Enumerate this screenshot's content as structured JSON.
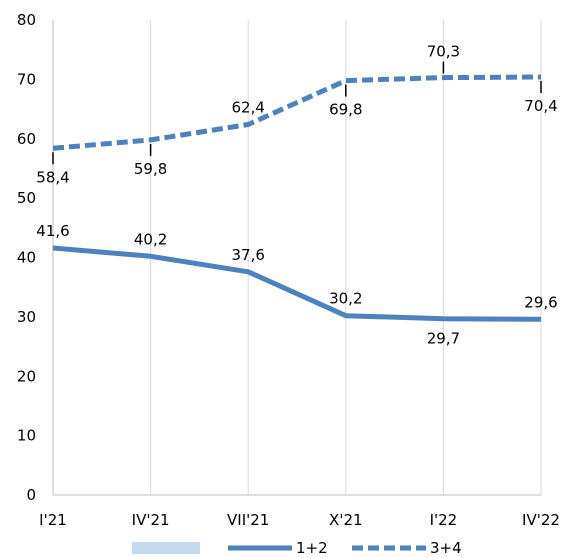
{
  "chart_data": {
    "type": "line",
    "categories": [
      "I'21",
      "IV'21",
      "VII'21",
      "X'21",
      "I'22",
      "IV'22"
    ],
    "ylim": [
      0,
      80
    ],
    "yticks": [
      0,
      10,
      20,
      30,
      40,
      50,
      60,
      70,
      80
    ],
    "grid": {
      "vertical": true,
      "horizontal": false
    },
    "legend_position": "bottom",
    "legend_patch_color": "#c5d9ef",
    "series": [
      {
        "name": "1+2",
        "style": "solid",
        "color": "#4f81bd",
        "values": [
          41.6,
          40.2,
          37.6,
          30.2,
          29.7,
          29.6
        ],
        "labels": [
          "41,6",
          "40,2",
          "37,6",
          "30,2",
          "29,7",
          "29,6"
        ],
        "label_placement": [
          "above",
          "above",
          "above",
          "above",
          "below",
          "above"
        ],
        "leader_lines": [
          false,
          false,
          false,
          false,
          false,
          false
        ]
      },
      {
        "name": "3+4",
        "style": "dashed",
        "color": "#4f81bd",
        "values": [
          58.4,
          59.8,
          62.4,
          69.8,
          70.3,
          70.4
        ],
        "labels": [
          "58,4",
          "59,8",
          "62,4",
          "69,8",
          "70,3",
          "70,4"
        ],
        "label_placement": [
          "below",
          "below",
          "above",
          "below",
          "above",
          "below"
        ],
        "leader_lines": [
          true,
          true,
          false,
          true,
          true,
          true
        ]
      }
    ]
  }
}
